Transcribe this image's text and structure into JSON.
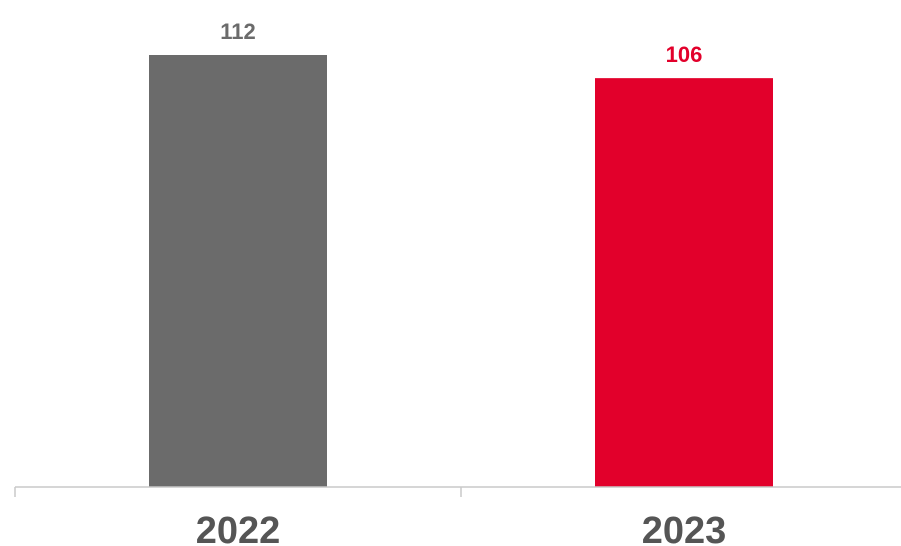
{
  "chart_data": {
    "type": "bar",
    "categories": [
      "2022",
      "2023"
    ],
    "values": [
      112,
      106
    ],
    "value_labels": [
      "112",
      "106"
    ],
    "colors": [
      "#6b6b6b",
      "#e2002b"
    ],
    "label_colors": [
      "#6b6b6b",
      "#e2002b"
    ],
    "ylim": [
      0,
      112
    ],
    "grid": false,
    "legend": "none"
  }
}
